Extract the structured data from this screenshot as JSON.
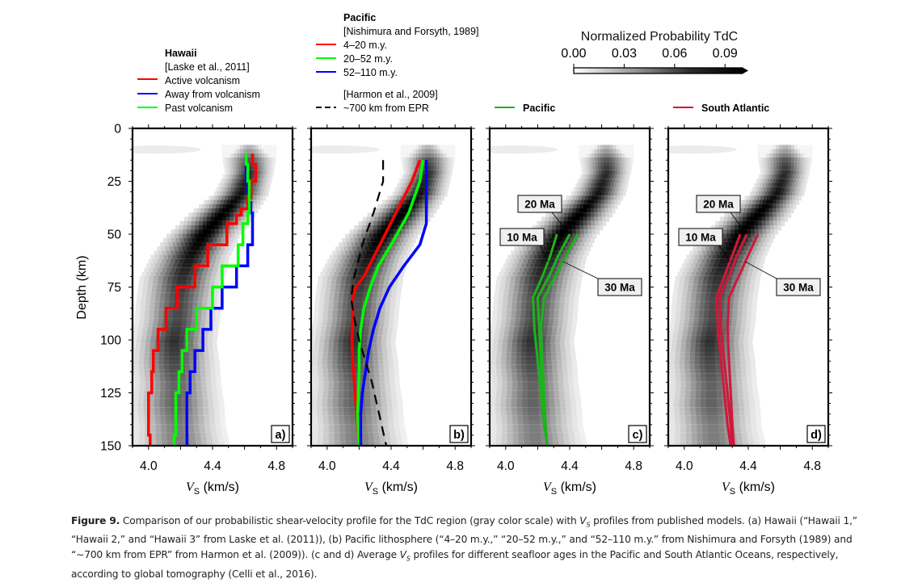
{
  "chart_data": {
    "type": "line",
    "figure_label": "Figure 9.",
    "colorbar": {
      "title": "Normalized Probability TdC",
      "ticks": [
        "0.00",
        "0.03",
        "0.06",
        "0.09"
      ],
      "range": [
        0.0,
        0.1
      ]
    },
    "shared_axes": {
      "xlabel_symbol": "V",
      "xlabel_sub": "S",
      "xlabel_unit": "(km/s)",
      "ylabel": "Depth (km)",
      "xlim": [
        3.9,
        4.9
      ],
      "ylim": [
        0,
        150
      ],
      "y_inverted": true,
      "xticks": [
        "4.0",
        "4.4",
        "4.8"
      ],
      "xtick_values": [
        4.0,
        4.4,
        4.8
      ],
      "yticks": [
        "0",
        "25",
        "50",
        "75",
        "100",
        "125",
        "150"
      ],
      "ytick_values": [
        0,
        25,
        50,
        75,
        100,
        125,
        150
      ]
    },
    "probability_ridge": {
      "description": "gray-scale probability density of TdC shear velocity (same in all panels)",
      "depth": [
        12,
        20,
        30,
        40,
        50,
        60,
        70,
        80,
        90,
        100,
        110,
        120,
        130,
        140,
        150
      ],
      "vs_center": [
        4.63,
        4.63,
        4.58,
        4.46,
        4.34,
        4.26,
        4.21,
        4.19,
        4.18,
        4.16,
        4.16,
        4.17,
        4.17,
        4.18,
        4.19
      ],
      "width": [
        0.09,
        0.08,
        0.09,
        0.11,
        0.12,
        0.13,
        0.14,
        0.14,
        0.14,
        0.14,
        0.15,
        0.15,
        0.16,
        0.16,
        0.17
      ],
      "peak": [
        0.06,
        0.08,
        0.09,
        0.1,
        0.1,
        0.09,
        0.08,
        0.07,
        0.07,
        0.08,
        0.07,
        0.06,
        0.06,
        0.05,
        0.05
      ]
    },
    "panels": [
      {
        "label": "a)",
        "legend": {
          "title": "Hawaii",
          "source": "[Laske et al., 2011]",
          "entries": [
            {
              "name": "Active volcanism",
              "color": "#ff0000",
              "style": "solid"
            },
            {
              "name": "Away from volcanism",
              "color": "#0000ff",
              "style": "solid"
            },
            {
              "name": "Past volcanism",
              "color": "#00ff00",
              "style": "solid"
            }
          ]
        },
        "series": [
          {
            "name": "Active volcanism",
            "color": "#ff0000",
            "step": true,
            "depth": [
              12,
              17,
              25,
              33,
              38,
              41,
              45,
              55,
              65,
              75,
              85,
              95,
              105,
              115,
              125,
              145,
              150
            ],
            "vs": [
              4.65,
              4.67,
              4.64,
              4.62,
              4.58,
              4.55,
              4.49,
              4.37,
              4.29,
              4.18,
              4.11,
              4.06,
              4.03,
              4.02,
              4.0,
              4.01,
              4.01
            ]
          },
          {
            "name": "Away from volcanism",
            "color": "#0000ff",
            "step": true,
            "depth": [
              17,
              25,
              30,
              35,
              40,
              55,
              65,
              75,
              85,
              95,
              105,
              115,
              125,
              150
            ],
            "vs": [
              4.61,
              4.62,
              4.63,
              4.64,
              4.65,
              4.62,
              4.55,
              4.46,
              4.39,
              4.34,
              4.29,
              4.26,
              4.24,
              4.24
            ]
          },
          {
            "name": "Past volcanism",
            "color": "#00ff00",
            "step": true,
            "depth": [
              12,
              17,
              25,
              35,
              40,
              45,
              55,
              65,
              75,
              85,
              95,
              105,
              115,
              125,
              145,
              150
            ],
            "vs": [
              4.61,
              4.62,
              4.63,
              4.63,
              4.62,
              4.59,
              4.56,
              4.46,
              4.4,
              4.3,
              4.24,
              4.21,
              4.19,
              4.17,
              4.16,
              4.16
            ]
          }
        ]
      },
      {
        "label": "b)",
        "legend": {
          "title": "Pacific",
          "source": "[Nishimura and Forsyth, 1989]",
          "entries": [
            {
              "name": "4–20 m.y.",
              "color": "#ff0000",
              "style": "solid"
            },
            {
              "name": "20–52 m.y.",
              "color": "#00ff00",
              "style": "solid"
            },
            {
              "name": "52–110 m.y.",
              "color": "#0000ff",
              "style": "solid"
            }
          ],
          "source2": "[Harmon et al., 2009]",
          "entries2": [
            {
              "name": "~700 km from EPR",
              "color": "#000000",
              "style": "dashed"
            }
          ]
        },
        "series": [
          {
            "name": "4–20 m.y.",
            "color": "#ff0000",
            "depth": [
              15,
              25,
              40,
              55,
              70,
              75,
              80,
              90,
              100,
              110,
              120,
              130,
              140,
              150
            ],
            "vs": [
              4.58,
              4.53,
              4.43,
              4.33,
              4.23,
              4.18,
              4.16,
              4.16,
              4.155,
              4.16,
              4.17,
              4.18,
              4.19,
              4.2
            ]
          },
          {
            "name": "20–52 m.y.",
            "color": "#00ff00",
            "depth": [
              15,
              25,
              40,
              55,
              65,
              75,
              85,
              95,
              105,
              115,
              125,
              135,
              150
            ],
            "vs": [
              4.6,
              4.58,
              4.51,
              4.4,
              4.32,
              4.27,
              4.23,
              4.21,
              4.2,
              4.2,
              4.195,
              4.19,
              4.2
            ]
          },
          {
            "name": "52–110 m.y.",
            "color": "#0000ff",
            "depth": [
              15,
              30,
              45,
              55,
              65,
              75,
              85,
              95,
              105,
              115,
              125,
              135,
              150
            ],
            "vs": [
              4.62,
              4.62,
              4.62,
              4.58,
              4.48,
              4.39,
              4.33,
              4.29,
              4.26,
              4.24,
              4.22,
              4.21,
              4.21
            ]
          },
          {
            "name": "~700 km from EPR",
            "color": "#000000",
            "dashed": true,
            "depth": [
              15,
              25,
              40,
              55,
              70,
              80,
              90,
              100,
              110,
              120,
              130,
              140,
              150
            ],
            "vs": [
              4.35,
              4.35,
              4.29,
              4.22,
              4.17,
              4.15,
              4.17,
              4.2,
              4.24,
              4.28,
              4.31,
              4.34,
              4.37
            ]
          }
        ]
      },
      {
        "label": "c)",
        "legend": {
          "entries": [
            {
              "name": "Pacific",
              "color": "#1db31d",
              "style": "solid"
            }
          ]
        },
        "annotations": [
          "10 Ma",
          "20 Ma",
          "30 Ma"
        ],
        "series": [
          {
            "name": "10 Ma",
            "color": "#1db31d",
            "depth": [
              50,
              60,
              70,
              80,
              95,
              110,
              125,
              140,
              150
            ],
            "vs": [
              4.32,
              4.28,
              4.23,
              4.17,
              4.18,
              4.2,
              4.22,
              4.24,
              4.26
            ]
          },
          {
            "name": "20 Ma",
            "color": "#1db31d",
            "depth": [
              50,
              60,
              70,
              80,
              95,
              110,
              125,
              140,
              150
            ],
            "vs": [
              4.4,
              4.33,
              4.27,
              4.2,
              4.21,
              4.22,
              4.23,
              4.25,
              4.26
            ]
          },
          {
            "name": "30 Ma",
            "color": "#1db31d",
            "depth": [
              50,
              60,
              70,
              80,
              95,
              110,
              125,
              140,
              150
            ],
            "vs": [
              4.45,
              4.38,
              4.31,
              4.24,
              4.22,
              4.23,
              4.24,
              4.25,
              4.26
            ]
          }
        ]
      },
      {
        "label": "d)",
        "legend": {
          "entries": [
            {
              "name": "South Atlantic",
              "color": "#d1173a",
              "style": "solid"
            }
          ]
        },
        "annotations": [
          "10 Ma",
          "20 Ma",
          "30 Ma"
        ],
        "series": [
          {
            "name": "10 Ma",
            "color": "#d1173a",
            "depth": [
              50,
              60,
              70,
              80,
              95,
              110,
              125,
              140,
              150
            ],
            "vs": [
              4.35,
              4.3,
              4.25,
              4.2,
              4.21,
              4.23,
              4.25,
              4.27,
              4.29
            ]
          },
          {
            "name": "20 Ma",
            "color": "#d1173a",
            "depth": [
              50,
              60,
              70,
              80,
              95,
              110,
              125,
              140,
              150
            ],
            "vs": [
              4.39,
              4.33,
              4.28,
              4.22,
              4.23,
              4.25,
              4.27,
              4.29,
              4.3
            ]
          },
          {
            "name": "30 Ma",
            "color": "#d1173a",
            "depth": [
              50,
              60,
              70,
              80,
              95,
              110,
              125,
              140,
              150
            ],
            "vs": [
              4.46,
              4.4,
              4.34,
              4.28,
              4.27,
              4.28,
              4.29,
              4.3,
              4.31
            ]
          }
        ]
      }
    ]
  },
  "caption": {
    "label": "Figure 9.",
    "text_1": " Comparison of our probabilistic shear-velocity profile for the TdC region (gray color scale) with ",
    "vs_symbol": "V",
    "vs_sub": "S",
    "text_2": " profiles from published models. (a) Hawaii (“Hawaii 1,” “Hawaii 2,” and “Hawaii 3” from Laske et al. (2011)), (b) Pacific lithosphere (“4–20 m.y.,” “20–52 m.y.,” and “52–110 m.y.” from Nishimura and Forsyth (1989) and “∼700 km from EPR” from Harmon et al. (2009)). (c and d) Average ",
    "text_3": " profiles for different seafloor ages in the Pacific and South Atlantic Oceans, respectively, according to global tomography (Celli et al., 2016)."
  }
}
